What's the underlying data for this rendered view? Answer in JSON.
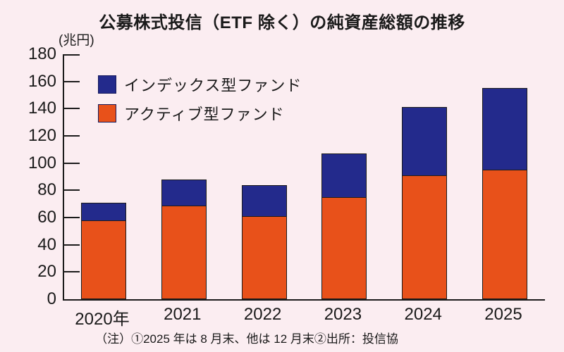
{
  "page": {
    "background": "#fbedf1",
    "ink": "#1a1a1a"
  },
  "chart_data": {
    "type": "bar",
    "stacked": true,
    "title": "公募株式投信（ETF 除く）の純資産総額の推移",
    "unit_label": "(兆円)",
    "xlabel": "",
    "ylabel": "兆円",
    "ylim": [
      0,
      180
    ],
    "ytick_step": 20,
    "grid": false,
    "legend_position": "top-left",
    "categories": [
      "2020年",
      "2021",
      "2022",
      "2023",
      "2024",
      "2025"
    ],
    "series": [
      {
        "key": "index-fund",
        "name": "インデックス型ファンド",
        "color": "#232a8c",
        "values": [
          13,
          19,
          23,
          32,
          50,
          60
        ]
      },
      {
        "key": "active-fund",
        "name": "アクティブ型ファンド",
        "color": "#e8511a",
        "values": [
          58,
          69,
          61,
          75,
          91,
          95
        ]
      }
    ],
    "totals": [
      71,
      88,
      84,
      107,
      141,
      155
    ],
    "note": "（注）①2025 年は 8 月末、他は 12 月末②出所：投信協"
  }
}
